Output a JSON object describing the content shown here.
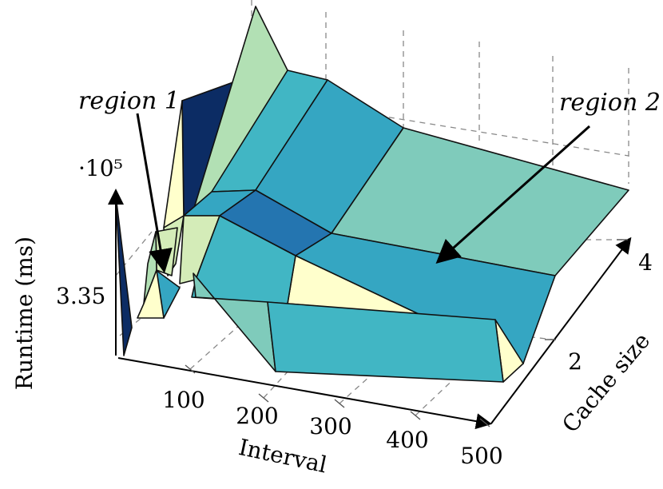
{
  "chart_data": {
    "type": "surface",
    "xlabel": "Interval",
    "ylabel": "Cache size",
    "zlabel": "Runtime (ms)",
    "z_scale_label": "·10⁵",
    "x_ticks": [
      "100",
      "200",
      "300",
      "400",
      "500"
    ],
    "y_ticks": [
      "2",
      "4"
    ],
    "z_ticks": [
      "3.35"
    ],
    "grid": true,
    "colormap": "YlGnBu",
    "annotations": [
      {
        "id": "region1",
        "text": "region 1"
      },
      {
        "id": "region2",
        "text": "region 2"
      }
    ]
  },
  "colors": {
    "pale_yellow": "#ffffcc",
    "light_green": "#d4ecb8",
    "mint": "#b2e0b4",
    "teal_light": "#7fcbbb",
    "teal": "#41b6c4",
    "teal_mid": "#35a6c2",
    "blue": "#2c7fb8",
    "blue_mid": "#2475b0",
    "navy": "#0c2c64"
  }
}
